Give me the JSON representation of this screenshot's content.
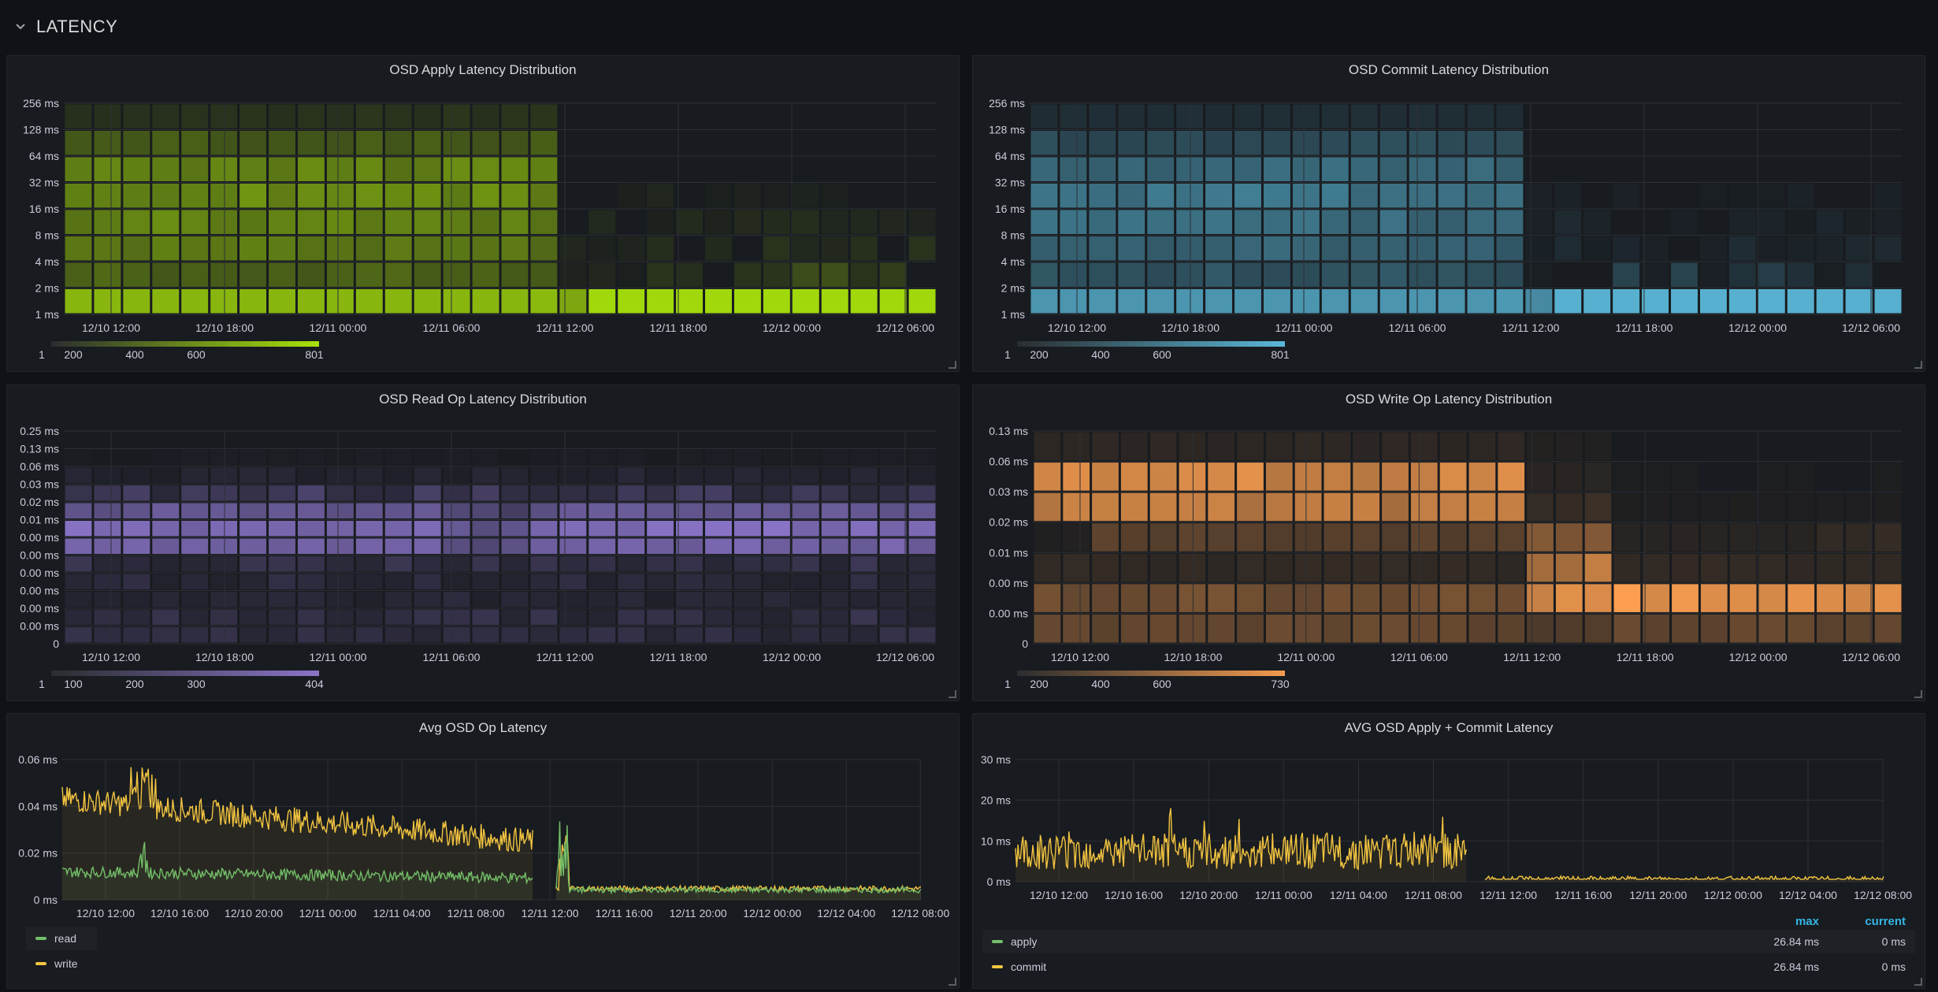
{
  "row": {
    "title": "LATENCY"
  },
  "panels": [
    {
      "title": "OSD Apply Latency Distribution",
      "type": "heatmap",
      "y_labels": [
        "1 ms",
        "2 ms",
        "4 ms",
        "8 ms",
        "16 ms",
        "32 ms",
        "64 ms",
        "128 ms",
        "256 ms"
      ],
      "x_labels": [
        "12/10 12:00",
        "12/10 18:00",
        "12/11 00:00",
        "12/11 06:00",
        "12/11 12:00",
        "12/11 18:00",
        "12/12 00:00",
        "12/12 06:00"
      ],
      "scale_labels": [
        "1",
        "200",
        "400",
        "600",
        "801"
      ],
      "color": "#a8e20a"
    },
    {
      "title": "OSD Commit Latency Distribution",
      "type": "heatmap",
      "y_labels": [
        "1 ms",
        "2 ms",
        "4 ms",
        "8 ms",
        "16 ms",
        "32 ms",
        "64 ms",
        "128 ms",
        "256 ms"
      ],
      "x_labels": [
        "12/10 12:00",
        "12/10 18:00",
        "12/11 00:00",
        "12/11 06:00",
        "12/11 12:00",
        "12/11 18:00",
        "12/12 00:00",
        "12/12 06:00"
      ],
      "scale_labels": [
        "1",
        "200",
        "400",
        "600",
        "801"
      ],
      "color": "#5ab8d8"
    },
    {
      "title": "OSD Read Op Latency Distribution",
      "type": "heatmap",
      "y_labels": [
        "0",
        "0.00 ms",
        "0.00 ms",
        "0.00 ms",
        "0.00 ms",
        "0.00 ms",
        "0.00 ms",
        "0.01 ms",
        "0.02 ms",
        "0.03 ms",
        "0.06 ms",
        "0.13 ms",
        "0.25 ms"
      ],
      "x_labels": [
        "12/10 12:00",
        "12/10 18:00",
        "12/11 00:00",
        "12/11 06:00",
        "12/11 12:00",
        "12/11 18:00",
        "12/12 00:00",
        "12/12 06:00"
      ],
      "scale_labels": [
        "1",
        "100",
        "200",
        "300",
        "404"
      ],
      "color": "#8a74c8"
    },
    {
      "title": "OSD Write Op Latency Distribution",
      "type": "heatmap",
      "y_labels": [
        "0",
        "0.00 ms",
        "0.00 ms",
        "0.01 ms",
        "0.02 ms",
        "0.03 ms",
        "0.06 ms",
        "0.13 ms"
      ],
      "x_labels": [
        "12/10 12:00",
        "12/10 18:00",
        "12/11 00:00",
        "12/11 06:00",
        "12/11 12:00",
        "12/11 18:00",
        "12/12 00:00",
        "12/12 06:00"
      ],
      "scale_labels": [
        "1",
        "200",
        "400",
        "600",
        "730"
      ],
      "color": "#f39a4e"
    },
    {
      "title": "Avg OSD Op Latency",
      "type": "line",
      "y_labels": [
        "0 ms",
        "0.02 ms",
        "0.04 ms",
        "0.06 ms"
      ],
      "x_labels": [
        "12/10 12:00",
        "12/10 16:00",
        "12/10 20:00",
        "12/11 00:00",
        "12/11 04:00",
        "12/11 08:00",
        "12/11 12:00",
        "12/11 16:00",
        "12/11 20:00",
        "12/12 00:00",
        "12/12 04:00",
        "12/12 08:00"
      ],
      "legend": [
        {
          "name": "read",
          "color": "#73bf69"
        },
        {
          "name": "write",
          "color": "#f2c541"
        }
      ]
    },
    {
      "title": "AVG OSD Apply + Commit Latency",
      "type": "line",
      "y_labels": [
        "0 ms",
        "10 ms",
        "20 ms",
        "30 ms"
      ],
      "x_labels": [
        "12/10 12:00",
        "12/10 16:00",
        "12/10 20:00",
        "12/11 00:00",
        "12/11 04:00",
        "12/11 08:00",
        "12/11 12:00",
        "12/11 16:00",
        "12/11 20:00",
        "12/12 00:00",
        "12/12 04:00",
        "12/12 08:00"
      ],
      "legend_headers": [
        "max",
        "current"
      ],
      "legend": [
        {
          "name": "apply",
          "color": "#73bf69",
          "max": "26.84 ms",
          "current": "0 ms"
        },
        {
          "name": "commit",
          "color": "#f2c541",
          "max": "26.84 ms",
          "current": "0 ms"
        }
      ]
    }
  ]
}
